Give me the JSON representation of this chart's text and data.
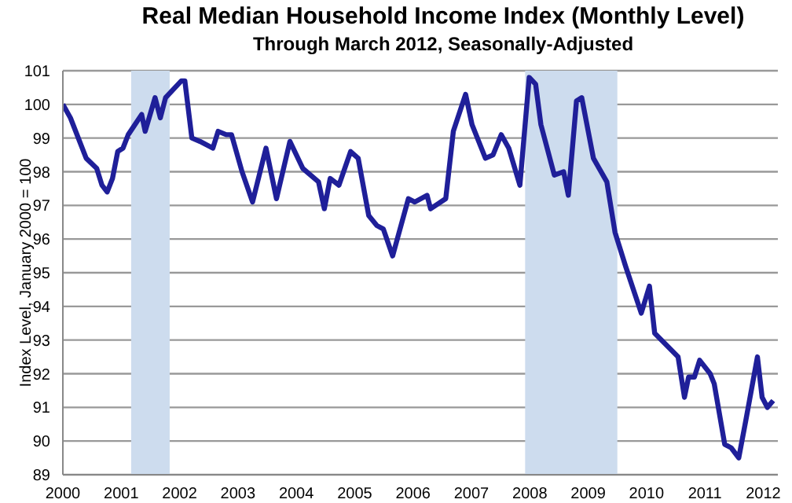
{
  "chart_data": {
    "type": "line",
    "title": "Real Median Household Income Index (Monthly Level)",
    "subtitle": "Through March 2012, Seasonally-Adjusted",
    "ylabel": "Index Level, January 2000 = 100",
    "x": [
      2000.0,
      2000.13,
      2000.4,
      2000.58,
      2000.67,
      2000.76,
      2000.85,
      2000.94,
      2001.03,
      2001.12,
      2001.35,
      2001.41,
      2001.58,
      2001.67,
      2001.76,
      2002.03,
      2002.09,
      2002.21,
      2002.35,
      2002.57,
      2002.66,
      2002.8,
      2002.89,
      2003.07,
      2003.25,
      2003.48,
      2003.66,
      2003.89,
      2004.11,
      2004.38,
      2004.48,
      2004.58,
      2004.73,
      2004.93,
      2005.06,
      2005.24,
      2005.38,
      2005.49,
      2005.65,
      2005.92,
      2006.03,
      2006.24,
      2006.3,
      2006.56,
      2006.69,
      2006.9,
      2007.01,
      2007.24,
      2007.37,
      2007.51,
      2007.64,
      2007.83,
      2007.99,
      2008.1,
      2008.19,
      2008.42,
      2008.58,
      2008.66,
      2008.8,
      2008.89,
      2009.09,
      2009.32,
      2009.46,
      2009.64,
      2009.91,
      2010.05,
      2010.14,
      2010.54,
      2010.65,
      2010.72,
      2010.82,
      2010.91,
      2011.09,
      2011.16,
      2011.34,
      2011.45,
      2011.58,
      2011.7,
      2011.9,
      2011.98,
      2012.07,
      2012.17
    ],
    "series": [
      {
        "color": "#1f1f99",
        "values": [
          100.0,
          99.6,
          98.4,
          98.1,
          97.6,
          97.4,
          97.8,
          98.6,
          98.7,
          99.1,
          99.7,
          99.2,
          100.2,
          99.6,
          100.2,
          100.7,
          100.7,
          99.0,
          98.9,
          98.7,
          99.2,
          99.1,
          99.1,
          98.0,
          97.1,
          98.7,
          97.2,
          98.9,
          98.1,
          97.7,
          96.9,
          97.8,
          97.6,
          98.6,
          98.4,
          96.7,
          96.4,
          96.3,
          95.5,
          97.2,
          97.1,
          97.3,
          96.9,
          97.2,
          99.2,
          100.3,
          99.4,
          98.4,
          98.5,
          99.1,
          98.7,
          97.6,
          100.8,
          100.6,
          99.4,
          97.9,
          98.0,
          97.3,
          100.1,
          100.2,
          98.4,
          97.7,
          96.2,
          95.2,
          93.8,
          94.6,
          93.2,
          92.5,
          91.3,
          91.9,
          91.9,
          92.4,
          92.0,
          91.7,
          89.9,
          89.8,
          89.5,
          90.6,
          92.5,
          91.3,
          91.0,
          91.2
        ]
      }
    ],
    "xlim": [
      2000,
      2012.25
    ],
    "xticks": [
      2000,
      2001,
      2002,
      2003,
      2004,
      2005,
      2006,
      2007,
      2008,
      2009,
      2010,
      2011,
      2012
    ],
    "ylim": [
      89,
      101
    ],
    "yticks": [
      89,
      90,
      91,
      92,
      93,
      94,
      95,
      96,
      97,
      98,
      99,
      100,
      101
    ],
    "bands": [
      {
        "axis": "x",
        "from": 2001.17,
        "to": 2001.83,
        "color": "#cddcee"
      },
      {
        "axis": "x",
        "from": 2007.92,
        "to": 2009.5,
        "color": "#cddcee"
      }
    ],
    "grid": "y",
    "legend": false,
    "marker": "none",
    "line_style": "solid"
  }
}
